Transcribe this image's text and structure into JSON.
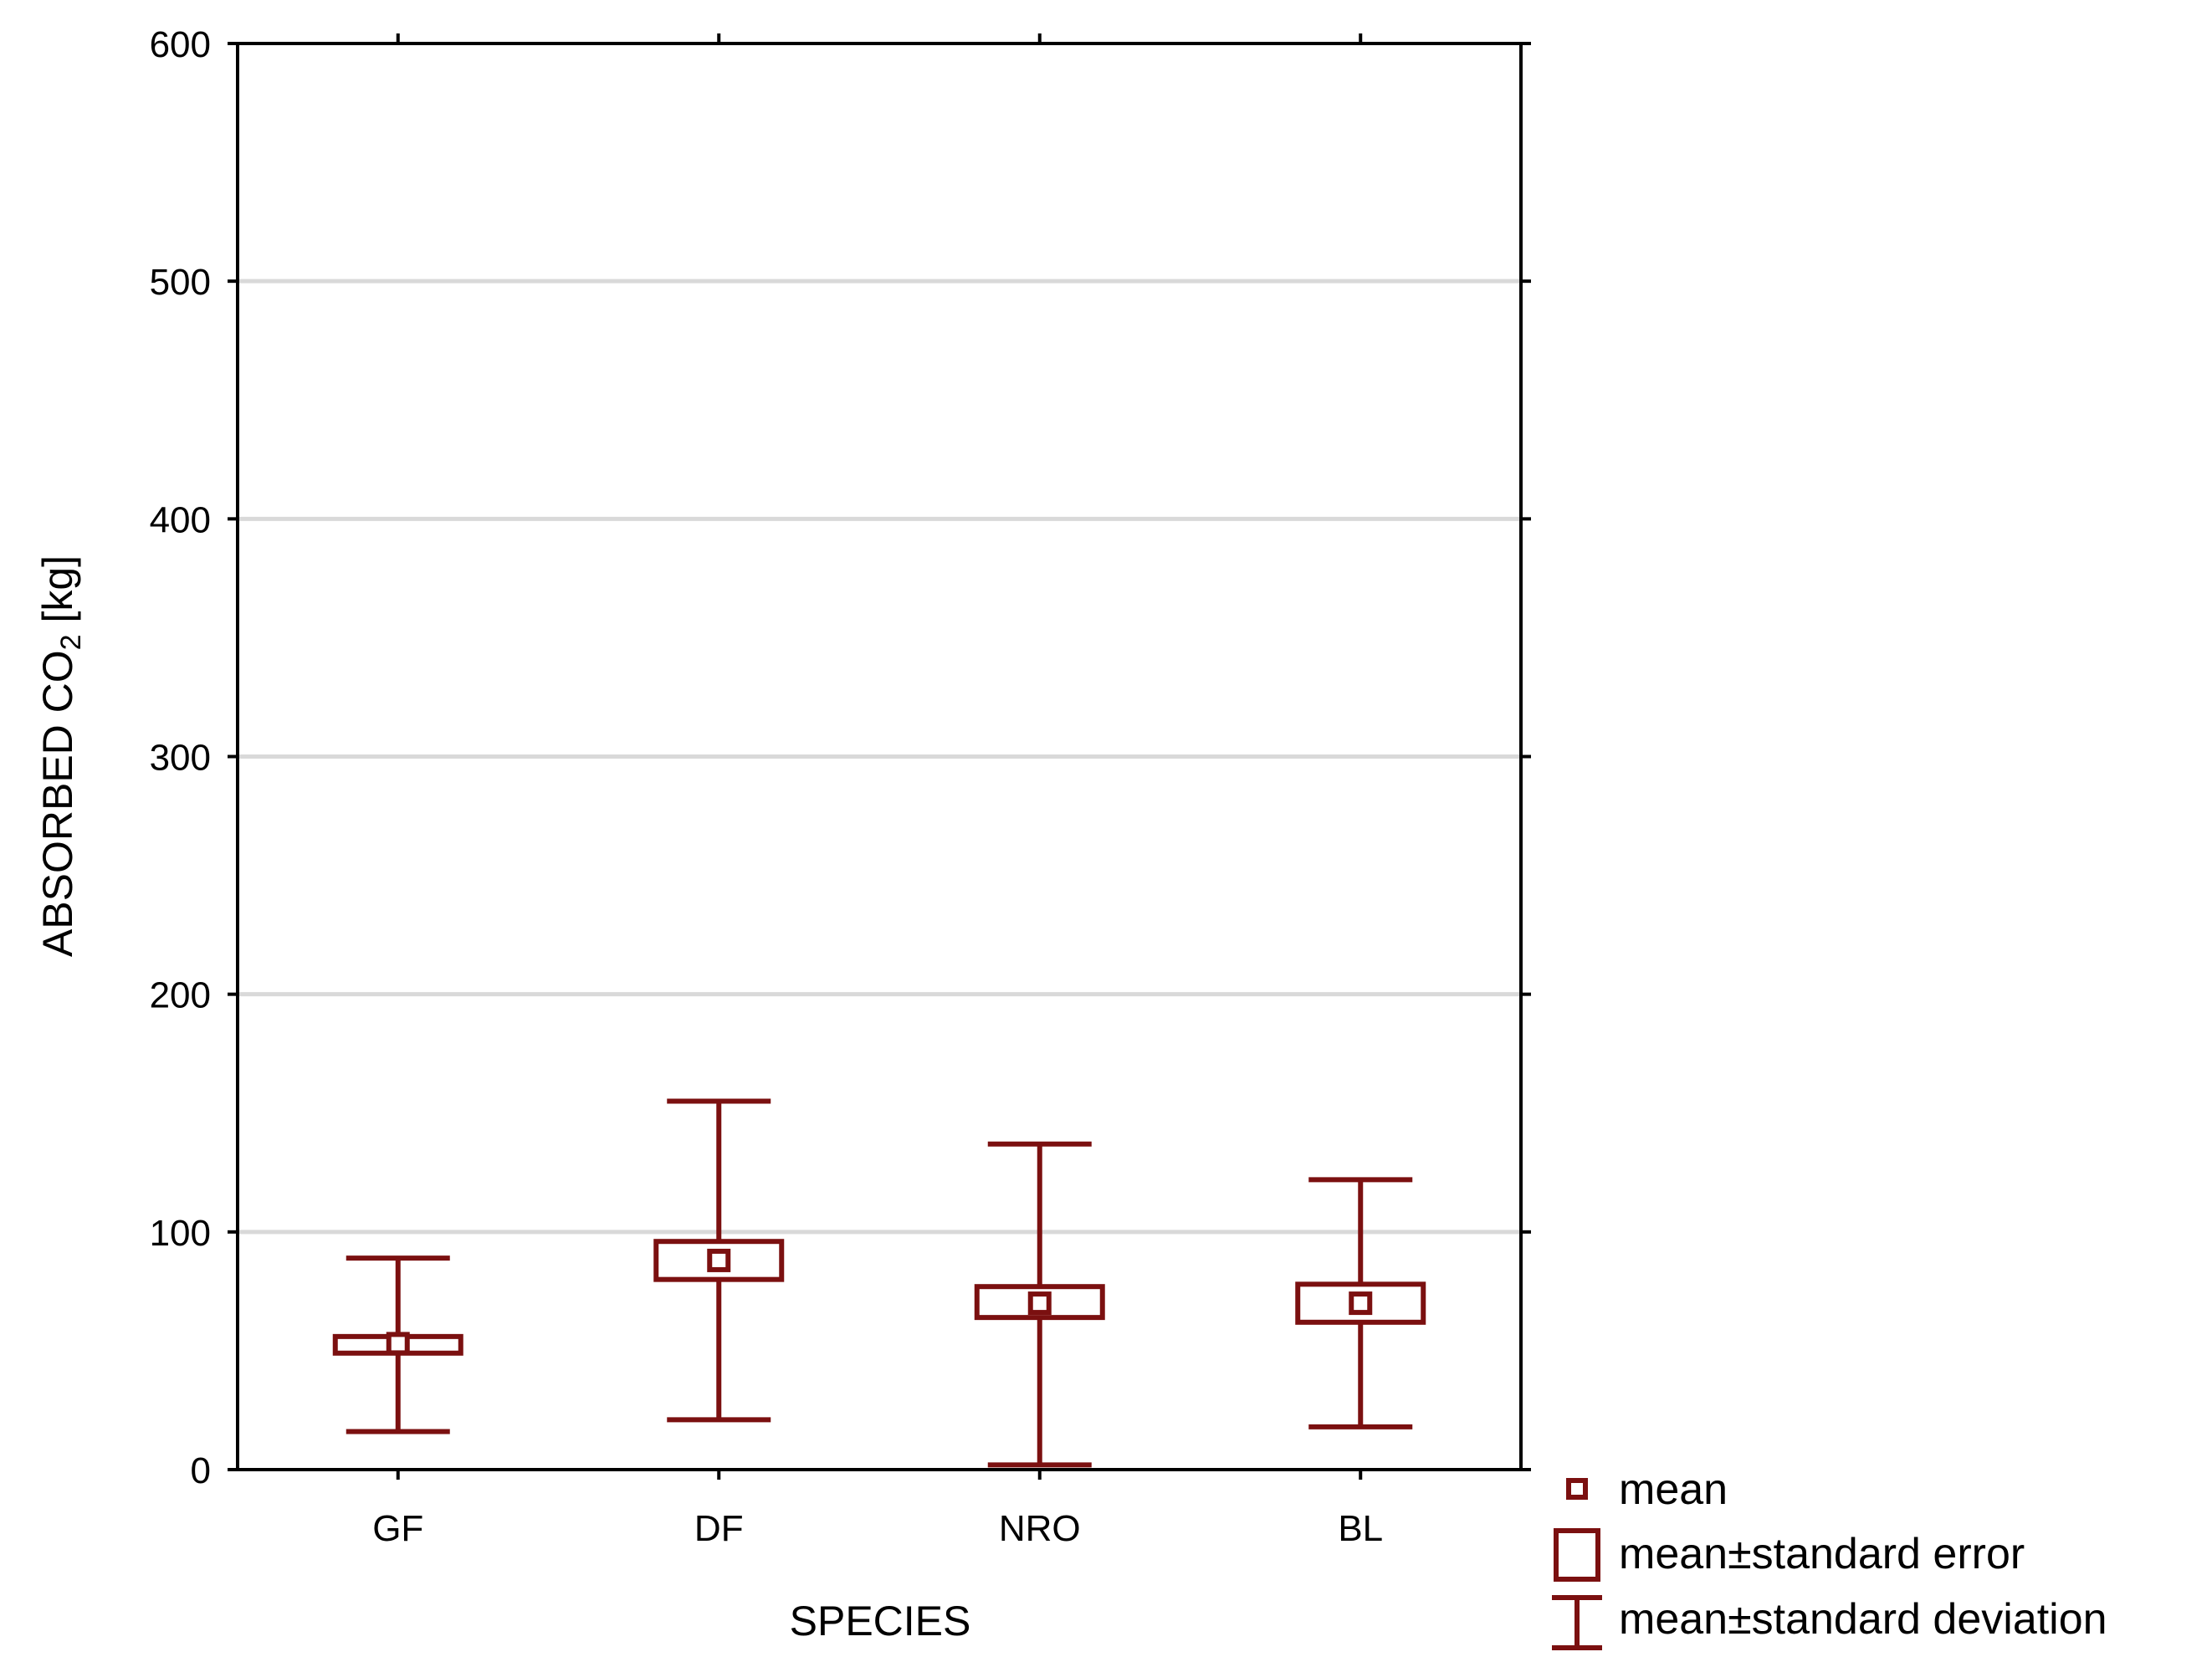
{
  "chart_data": {
    "type": "box",
    "title": "",
    "xlabel": "SPECIES",
    "ylabel": {
      "main": "ABSORBED CO",
      "subscript": "2",
      "unit": " [kg]"
    },
    "ylim": [
      0,
      600
    ],
    "yticks": [
      0,
      100,
      200,
      300,
      400,
      500,
      600
    ],
    "grid": true,
    "categories": [
      "GF",
      "DF",
      "NRO",
      "BL"
    ],
    "series": [
      {
        "name": "GF",
        "mean": 53,
        "se_low": 49,
        "se_high": 56,
        "sd_low": 16,
        "sd_high": 89
      },
      {
        "name": "DF",
        "mean": 88,
        "se_low": 80,
        "se_high": 96,
        "sd_low": 21,
        "sd_high": 155
      },
      {
        "name": "NRO",
        "mean": 70,
        "se_low": 64,
        "se_high": 77,
        "sd_low": 2,
        "sd_high": 137
      },
      {
        "name": "BL",
        "mean": 70,
        "se_low": 62,
        "se_high": 78,
        "sd_low": 18,
        "sd_high": 122
      }
    ],
    "legend": {
      "position": "bottom-right",
      "items": [
        "mean",
        "mean±standard error",
        "mean±standard deviation"
      ]
    },
    "colors": {
      "series": "#7b1010",
      "grid": "#d9d9d9",
      "axis": "#000000"
    }
  }
}
